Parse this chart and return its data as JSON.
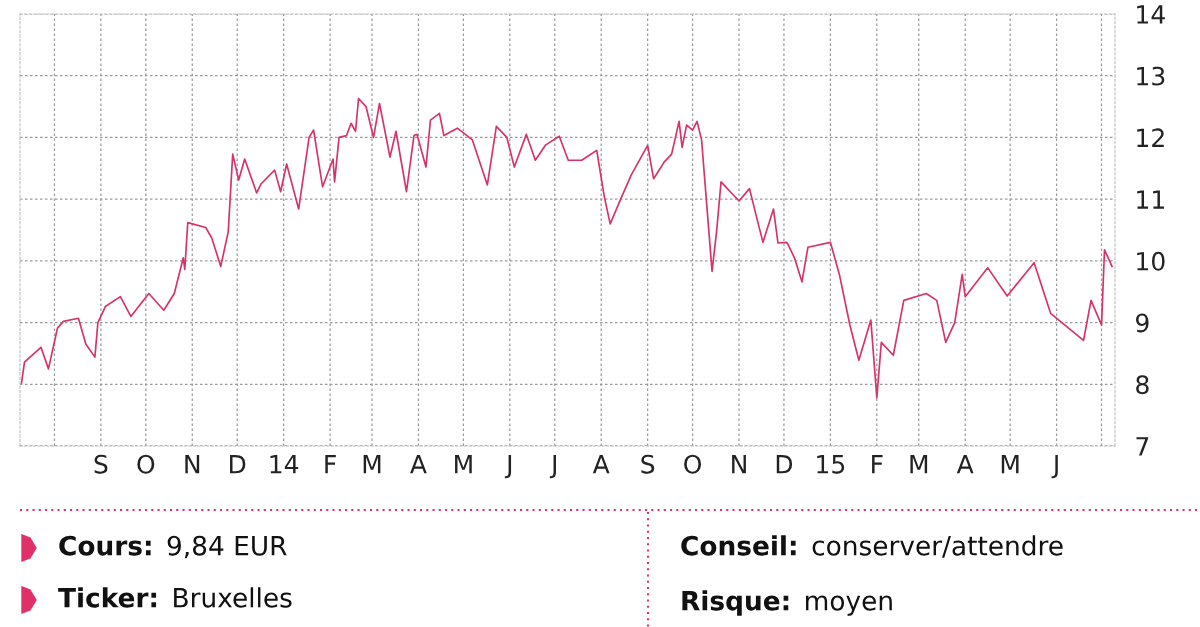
{
  "chart_data": {
    "type": "line",
    "x": [
      "2013-07-10",
      "2013-07-12",
      "2013-07-17",
      "2013-07-23",
      "2013-07-28",
      "2013-08-03",
      "2013-08-07",
      "2013-08-17",
      "2013-08-22",
      "2013-08-28",
      "2013-08-30",
      "2013-09-04",
      "2013-09-14",
      "2013-09-21",
      "2013-10-03",
      "2013-10-13",
      "2013-10-20",
      "2013-10-26",
      "2013-10-27",
      "2013-10-29",
      "2013-11-10",
      "2013-11-14",
      "2013-11-20",
      "2013-11-25",
      "2013-11-28",
      "2013-12-02",
      "2013-12-06",
      "2013-12-14",
      "2013-12-17",
      "2013-12-26",
      "2013-12-30",
      "2014-01-03",
      "2014-01-11",
      "2014-01-18",
      "2014-01-21",
      "2014-01-27",
      "2014-02-03",
      "2014-02-04",
      "2014-02-07",
      "2014-02-12",
      "2014-02-15",
      "2014-02-18",
      "2014-02-20",
      "2014-02-25",
      "2014-03-02",
      "2014-03-06",
      "2014-03-13",
      "2014-03-17",
      "2014-03-24",
      "2014-03-29",
      "2014-03-31",
      "2014-04-06",
      "2014-04-09",
      "2014-04-15",
      "2014-04-18",
      "2014-04-27",
      "2014-05-07",
      "2014-05-17",
      "2014-05-23",
      "2014-05-30",
      "2014-06-04",
      "2014-06-12",
      "2014-06-18",
      "2014-06-25",
      "2014-07-04",
      "2014-07-10",
      "2014-07-19",
      "2014-07-29",
      "2014-08-03",
      "2014-08-07",
      "2014-08-14",
      "2014-08-21",
      "2014-09-01",
      "2014-09-05",
      "2014-09-12",
      "2014-09-17",
      "2014-09-22",
      "2014-09-24",
      "2014-09-27",
      "2014-10-01",
      "2014-10-04",
      "2014-10-07",
      "2014-10-14",
      "2014-10-17",
      "2014-10-20",
      "2014-11-01",
      "2014-11-08",
      "2014-11-13",
      "2014-11-17",
      "2014-11-24",
      "2014-11-27",
      "2014-12-03",
      "2014-12-08",
      "2014-12-13",
      "2014-12-17",
      "2015-01-01",
      "2015-01-07",
      "2015-01-14",
      "2015-01-20",
      "2015-01-28",
      "2015-02-01",
      "2015-02-04",
      "2015-02-12",
      "2015-02-19",
      "2015-03-06",
      "2015-03-13",
      "2015-03-19",
      "2015-03-25",
      "2015-03-30",
      "2015-04-01",
      "2015-04-16",
      "2015-04-29",
      "2015-05-17",
      "2015-05-28",
      "2015-06-09",
      "2015-06-19",
      "2015-06-24",
      "2015-07-01",
      "2015-07-03",
      "2015-07-08"
    ],
    "series": [
      {
        "color": "#d6336b",
        "values": [
          8.02,
          8.36,
          8.47,
          8.6,
          8.25,
          8.91,
          9.02,
          9.07,
          8.65,
          8.44,
          9.0,
          9.26,
          9.42,
          9.1,
          9.47,
          9.2,
          9.47,
          10.05,
          9.86,
          10.62,
          10.54,
          10.37,
          9.91,
          10.47,
          11.73,
          11.31,
          11.65,
          11.1,
          11.25,
          11.47,
          11.12,
          11.57,
          10.84,
          12.0,
          12.12,
          11.2,
          11.65,
          11.28,
          12.0,
          12.03,
          12.23,
          12.1,
          12.63,
          12.5,
          12.0,
          12.55,
          11.68,
          12.1,
          11.12,
          12.03,
          12.05,
          11.52,
          12.28,
          12.39,
          12.03,
          12.15,
          11.96,
          11.23,
          12.18,
          12.0,
          11.52,
          12.05,
          11.63,
          11.88,
          12.02,
          11.63,
          11.63,
          11.79,
          11.05,
          10.6,
          11.0,
          11.39,
          11.87,
          11.33,
          11.6,
          11.73,
          12.26,
          11.84,
          12.2,
          12.12,
          12.26,
          11.96,
          9.83,
          10.47,
          11.28,
          10.97,
          11.17,
          10.68,
          10.3,
          10.84,
          10.29,
          10.3,
          10.05,
          9.66,
          10.22,
          10.3,
          9.78,
          8.96,
          8.39,
          9.04,
          7.78,
          8.68,
          8.47,
          9.36,
          9.47,
          9.36,
          8.68,
          9.0,
          9.78,
          9.42,
          9.89,
          9.43,
          9.97,
          9.15,
          8.91,
          8.71,
          9.36,
          8.96,
          10.18,
          9.91
        ]
      }
    ],
    "xlim": [
      "2013-07-09",
      "2015-07-10"
    ],
    "xticks": [
      {
        "value": "2013-08-01",
        "label": null
      },
      {
        "value": "2013-09-01",
        "label": "S"
      },
      {
        "value": "2013-10-01",
        "label": "O"
      },
      {
        "value": "2013-11-01",
        "label": "N"
      },
      {
        "value": "2013-12-01",
        "label": "D"
      },
      {
        "value": "2014-01-01",
        "label": "14"
      },
      {
        "value": "2014-02-01",
        "label": "F"
      },
      {
        "value": "2014-03-01",
        "label": "M"
      },
      {
        "value": "2014-04-01",
        "label": "A"
      },
      {
        "value": "2014-05-01",
        "label": "M"
      },
      {
        "value": "2014-06-01",
        "label": "J"
      },
      {
        "value": "2014-07-01",
        "label": "J"
      },
      {
        "value": "2014-08-01",
        "label": "A"
      },
      {
        "value": "2014-09-01",
        "label": "S"
      },
      {
        "value": "2014-10-01",
        "label": "O"
      },
      {
        "value": "2014-11-01",
        "label": "N"
      },
      {
        "value": "2014-12-01",
        "label": "D"
      },
      {
        "value": "2015-01-01",
        "label": "15"
      },
      {
        "value": "2015-02-01",
        "label": "F"
      },
      {
        "value": "2015-03-01",
        "label": "M"
      },
      {
        "value": "2015-04-01",
        "label": "A"
      },
      {
        "value": "2015-05-01",
        "label": "M"
      },
      {
        "value": "2015-06-01",
        "label": "J"
      },
      {
        "value": "2015-07-01",
        "label": null
      }
    ],
    "ylim": [
      7,
      14
    ],
    "yticks": [
      7,
      8,
      9,
      10,
      11,
      12,
      13,
      14
    ],
    "grid": true,
    "legend": false,
    "marker": "none",
    "line_style": "solid",
    "annotations": [
      "Cours: 9,84 EUR",
      "Ticker: Bruxelles",
      "Conseil: conserver/attendre",
      "Risque: moyen"
    ]
  }
}
